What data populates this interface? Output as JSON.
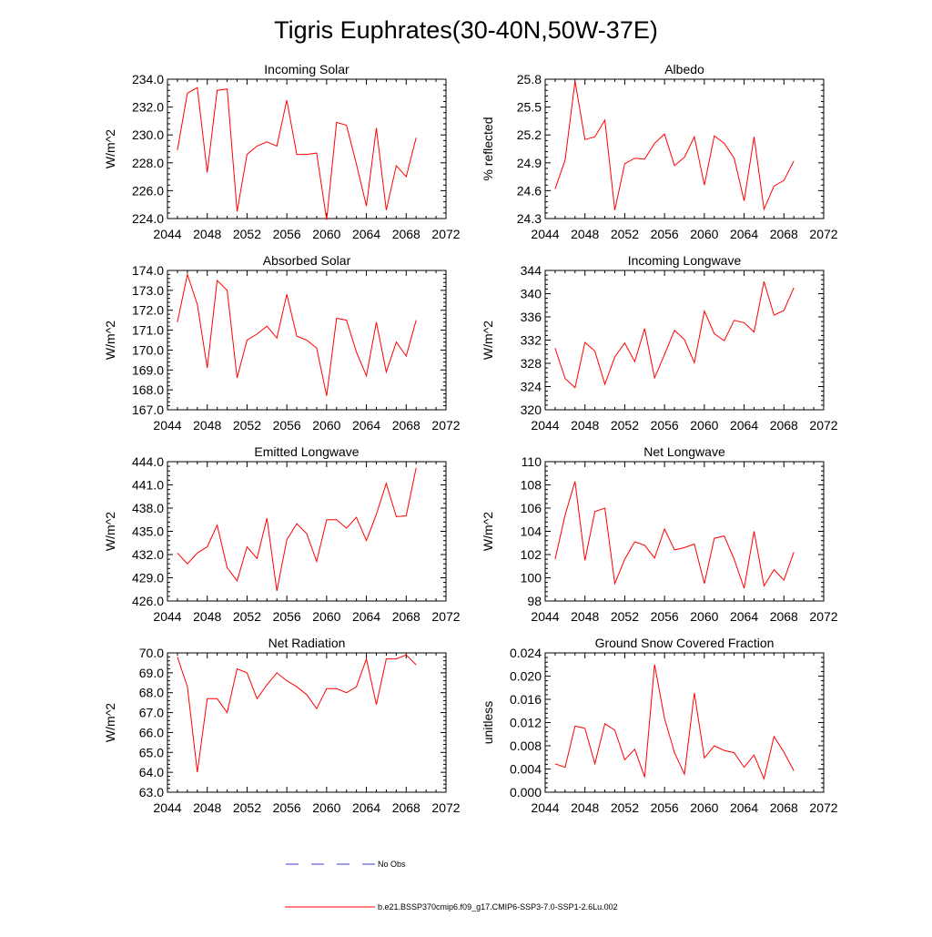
{
  "title": "Tigris Euphrates(30-40N,50W-37E)",
  "legend": [
    {
      "label": "No Obs",
      "color": "#3b3bd6",
      "style": "dashed"
    },
    {
      "label": "b.e21.BSSP370cmip6.f09_g17.CMIP6-SSP3-7.0-SSP1-2.6Lu.002",
      "color": "#ff0000",
      "style": "solid"
    }
  ],
  "chart_data": [
    {
      "type": "line",
      "title": "Incoming Solar",
      "ylabel": "W/m^2",
      "xlim": [
        2044,
        2072
      ],
      "ylim": [
        224,
        234
      ],
      "x_ticks": [
        2044,
        2048,
        2052,
        2056,
        2060,
        2064,
        2068,
        2072
      ],
      "y_ticks": [
        "224.0",
        "226.0",
        "228.0",
        "230.0",
        "232.0",
        "234.0"
      ],
      "x": [
        2045,
        2046,
        2047,
        2048,
        2049,
        2050,
        2051,
        2052,
        2053,
        2054,
        2055,
        2056,
        2057,
        2058,
        2059,
        2060,
        2061,
        2062,
        2063,
        2064,
        2065,
        2066,
        2067,
        2068,
        2069
      ],
      "series": [
        {
          "values": [
            228.9,
            233.0,
            233.4,
            227.3,
            233.2,
            233.3,
            224.5,
            228.6,
            229.2,
            229.5,
            229.2,
            232.5,
            228.6,
            228.6,
            228.7,
            223.9,
            230.9,
            230.7,
            227.9,
            224.9,
            230.5,
            224.6,
            227.8,
            227.0,
            229.8
          ]
        }
      ]
    },
    {
      "type": "line",
      "title": "Albedo",
      "ylabel": "% reflected",
      "xlim": [
        2044,
        2072
      ],
      "ylim": [
        24.3,
        25.8
      ],
      "x_ticks": [
        2044,
        2048,
        2052,
        2056,
        2060,
        2064,
        2068,
        2072
      ],
      "y_ticks": [
        "24.3",
        "24.6",
        "24.9",
        "25.2",
        "25.5",
        "25.8"
      ],
      "x": [
        2045,
        2046,
        2047,
        2048,
        2049,
        2050,
        2051,
        2052,
        2053,
        2054,
        2055,
        2056,
        2057,
        2058,
        2059,
        2060,
        2061,
        2062,
        2063,
        2064,
        2065,
        2066,
        2067,
        2068,
        2069
      ],
      "series": [
        {
          "values": [
            24.62,
            24.93,
            25.78,
            25.15,
            25.18,
            25.36,
            24.39,
            24.89,
            24.95,
            24.94,
            25.11,
            25.21,
            24.87,
            24.96,
            25.18,
            24.66,
            25.19,
            25.11,
            24.95,
            24.49,
            25.18,
            24.4,
            24.65,
            24.71,
            24.92
          ]
        }
      ]
    },
    {
      "type": "line",
      "title": "Absorbed Solar",
      "ylabel": "W/m^2",
      "xlim": [
        2044,
        2072
      ],
      "ylim": [
        167,
        174
      ],
      "x_ticks": [
        2044,
        2048,
        2052,
        2056,
        2060,
        2064,
        2068,
        2072
      ],
      "y_ticks": [
        "167.0",
        "168.0",
        "169.0",
        "170.0",
        "171.0",
        "172.0",
        "173.0",
        "174.0"
      ],
      "x": [
        2045,
        2046,
        2047,
        2048,
        2049,
        2050,
        2051,
        2052,
        2053,
        2054,
        2055,
        2056,
        2057,
        2058,
        2059,
        2060,
        2061,
        2062,
        2063,
        2064,
        2065,
        2066,
        2067,
        2068,
        2069
      ],
      "series": [
        {
          "values": [
            171.4,
            173.8,
            172.3,
            169.1,
            173.5,
            173.0,
            168.6,
            170.5,
            170.8,
            171.2,
            170.6,
            172.8,
            170.7,
            170.5,
            170.1,
            167.7,
            171.6,
            171.5,
            169.9,
            168.7,
            171.4,
            168.9,
            170.4,
            169.7,
            171.5
          ]
        }
      ]
    },
    {
      "type": "line",
      "title": "Incoming Longwave",
      "ylabel": "W/m^2",
      "xlim": [
        2044,
        2072
      ],
      "ylim": [
        320,
        344
      ],
      "x_ticks": [
        2044,
        2048,
        2052,
        2056,
        2060,
        2064,
        2068,
        2072
      ],
      "y_ticks": [
        "320",
        "324",
        "328",
        "332",
        "336",
        "340",
        "344"
      ],
      "x": [
        2045,
        2046,
        2047,
        2048,
        2049,
        2050,
        2051,
        2052,
        2053,
        2054,
        2055,
        2056,
        2057,
        2058,
        2059,
        2060,
        2061,
        2062,
        2063,
        2064,
        2065,
        2066,
        2067,
        2068,
        2069
      ],
      "series": [
        {
          "values": [
            330.6,
            325.4,
            323.8,
            331.6,
            330.1,
            324.4,
            329.1,
            331.5,
            328.3,
            334.0,
            325.5,
            329.5,
            333.7,
            332.1,
            328.1,
            337.0,
            333.1,
            331.9,
            335.4,
            335.0,
            333.4,
            342.1,
            336.3,
            337.1,
            341.0
          ]
        }
      ]
    },
    {
      "type": "line",
      "title": "Emitted Longwave",
      "ylabel": "W/m^2",
      "xlim": [
        2044,
        2072
      ],
      "ylim": [
        426,
        444
      ],
      "x_ticks": [
        2044,
        2048,
        2052,
        2056,
        2060,
        2064,
        2068,
        2072
      ],
      "y_ticks": [
        "426.0",
        "429.0",
        "432.0",
        "435.0",
        "438.0",
        "441.0",
        "444.0"
      ],
      "x": [
        2045,
        2046,
        2047,
        2048,
        2049,
        2050,
        2051,
        2052,
        2053,
        2054,
        2055,
        2056,
        2057,
        2058,
        2059,
        2060,
        2061,
        2062,
        2063,
        2064,
        2065,
        2066,
        2067,
        2068,
        2069
      ],
      "series": [
        {
          "values": [
            432.2,
            430.8,
            432.2,
            433.0,
            435.8,
            430.3,
            428.6,
            433.0,
            431.5,
            436.7,
            427.3,
            433.9,
            436.0,
            434.7,
            431.1,
            436.5,
            436.5,
            435.4,
            436.8,
            433.8,
            437.2,
            441.2,
            436.9,
            437.0,
            443.2
          ]
        }
      ]
    },
    {
      "type": "line",
      "title": "Net Longwave",
      "ylabel": "W/m^2",
      "xlim": [
        2044,
        2072
      ],
      "ylim": [
        98,
        110
      ],
      "x_ticks": [
        2044,
        2048,
        2052,
        2056,
        2060,
        2064,
        2068,
        2072
      ],
      "y_ticks": [
        "98",
        "100",
        "102",
        "104",
        "106",
        "108",
        "110"
      ],
      "x": [
        2045,
        2046,
        2047,
        2048,
        2049,
        2050,
        2051,
        2052,
        2053,
        2054,
        2055,
        2056,
        2057,
        2058,
        2059,
        2060,
        2061,
        2062,
        2063,
        2064,
        2065,
        2066,
        2067,
        2068,
        2069
      ],
      "series": [
        {
          "values": [
            101.6,
            105.4,
            108.3,
            101.5,
            105.7,
            106.0,
            99.5,
            101.6,
            103.1,
            102.8,
            101.7,
            104.2,
            102.4,
            102.6,
            102.9,
            99.5,
            103.4,
            103.6,
            101.6,
            99.1,
            104.0,
            99.3,
            100.7,
            99.8,
            102.2
          ]
        }
      ]
    },
    {
      "type": "line",
      "title": "Net Radiation",
      "ylabel": "W/m^2",
      "xlim": [
        2044,
        2072
      ],
      "ylim": [
        63,
        70
      ],
      "x_ticks": [
        2044,
        2048,
        2052,
        2056,
        2060,
        2064,
        2068,
        2072
      ],
      "y_ticks": [
        "63.0",
        "64.0",
        "65.0",
        "66.0",
        "67.0",
        "68.0",
        "69.0",
        "70.0"
      ],
      "x": [
        2045,
        2046,
        2047,
        2048,
        2049,
        2050,
        2051,
        2052,
        2053,
        2054,
        2055,
        2056,
        2057,
        2058,
        2059,
        2060,
        2061,
        2062,
        2063,
        2064,
        2065,
        2066,
        2067,
        2068,
        2069
      ],
      "series": [
        {
          "values": [
            69.8,
            68.3,
            64.0,
            67.7,
            67.7,
            67.0,
            69.2,
            69.0,
            67.7,
            68.4,
            69.0,
            68.6,
            68.3,
            67.9,
            67.2,
            68.2,
            68.2,
            68.0,
            68.3,
            69.7,
            67.4,
            69.7,
            69.7,
            69.9,
            69.4
          ]
        }
      ]
    },
    {
      "type": "line",
      "title": "Ground Snow Covered Fraction",
      "ylabel": "unitless",
      "xlim": [
        2044,
        2072
      ],
      "ylim": [
        0,
        0.024
      ],
      "x_ticks": [
        2044,
        2048,
        2052,
        2056,
        2060,
        2064,
        2068,
        2072
      ],
      "y_ticks": [
        "0.000",
        "0.004",
        "0.008",
        "0.012",
        "0.016",
        "0.020",
        "0.024"
      ],
      "x": [
        2045,
        2046,
        2047,
        2048,
        2049,
        2050,
        2051,
        2052,
        2053,
        2054,
        2055,
        2056,
        2057,
        2058,
        2059,
        2060,
        2061,
        2062,
        2063,
        2064,
        2065,
        2066,
        2067,
        2068,
        2069
      ],
      "series": [
        {
          "values": [
            0.0049,
            0.0043,
            0.0114,
            0.011,
            0.0049,
            0.0118,
            0.0107,
            0.0056,
            0.0074,
            0.0026,
            0.022,
            0.0127,
            0.0068,
            0.0031,
            0.0171,
            0.0059,
            0.008,
            0.0072,
            0.0068,
            0.0043,
            0.0064,
            0.0023,
            0.0096,
            0.0069,
            0.0037
          ]
        }
      ]
    }
  ]
}
